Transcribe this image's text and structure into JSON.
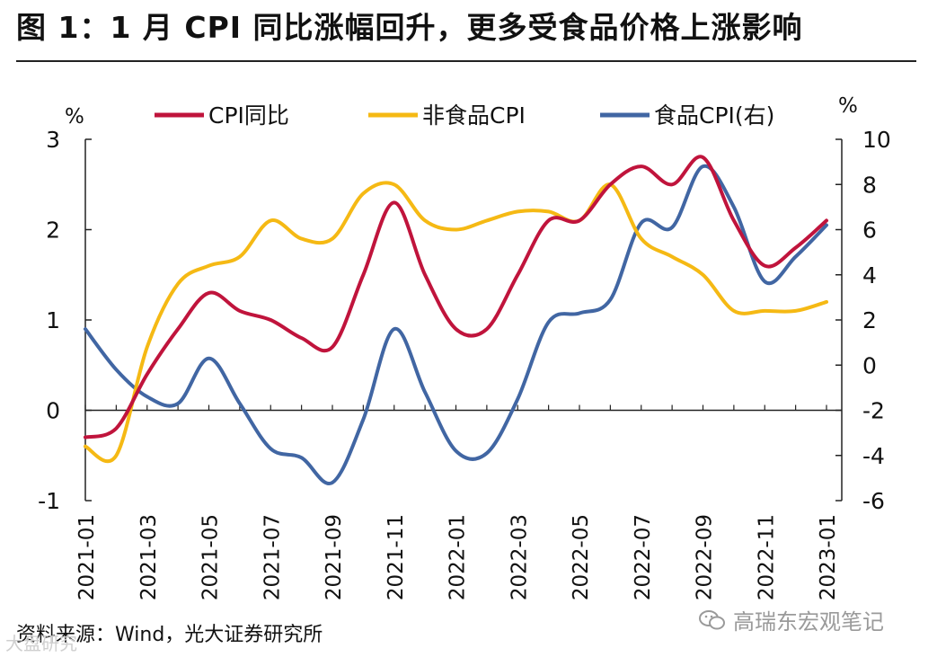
{
  "title": "图 1：1 月 CPI 同比涨幅回升，更多受食品价格上涨影响",
  "source": "资料来源：Wind，光大证券研究所",
  "watermark": "高瑞东宏观笔记",
  "watermark_left": "大盘研究",
  "chart_data": {
    "type": "line",
    "categories": [
      "2021-01",
      "2021-02",
      "2021-03",
      "2021-04",
      "2021-05",
      "2021-06",
      "2021-07",
      "2021-08",
      "2021-09",
      "2021-10",
      "2021-11",
      "2021-12",
      "2022-01",
      "2022-02",
      "2022-03",
      "2022-04",
      "2022-05",
      "2022-06",
      "2022-07",
      "2022-08",
      "2022-09",
      "2022-10",
      "2022-11",
      "2022-12",
      "2023-01"
    ],
    "xtick_labels": [
      "2021-01",
      "2021-03",
      "2021-05",
      "2021-07",
      "2021-09",
      "2021-11",
      "2022-01",
      "2022-03",
      "2022-05",
      "2022-07",
      "2022-09",
      "2022-11",
      "2023-01"
    ],
    "left_axis": {
      "unit": "%",
      "ylim": [
        -1,
        3
      ],
      "ticks": [
        "3",
        "2",
        "1",
        "0",
        "-1"
      ]
    },
    "right_axis": {
      "unit": "%",
      "ylim": [
        -6,
        10
      ],
      "ticks": [
        "10",
        "8",
        "6",
        "4",
        "2",
        "0",
        "-2",
        "-4",
        "-6"
      ]
    },
    "series": [
      {
        "name": "CPI同比",
        "axis": "left",
        "color": "#c0143c",
        "values": [
          -0.3,
          -0.2,
          0.4,
          0.9,
          1.3,
          1.1,
          1.0,
          0.8,
          0.7,
          1.5,
          2.3,
          1.5,
          0.9,
          0.9,
          1.5,
          2.1,
          2.1,
          2.5,
          2.7,
          2.5,
          2.8,
          2.1,
          1.6,
          1.8,
          2.1
        ]
      },
      {
        "name": "非食品CPI",
        "axis": "left",
        "color": "#f5b914",
        "values": [
          -0.4,
          -0.5,
          0.7,
          1.4,
          1.6,
          1.7,
          2.1,
          1.9,
          1.9,
          2.4,
          2.5,
          2.1,
          2.0,
          2.1,
          2.2,
          2.2,
          2.1,
          2.5,
          1.9,
          1.7,
          1.5,
          1.1,
          1.1,
          1.1,
          1.2
        ]
      },
      {
        "name": "食品CPI(右)",
        "axis": "right",
        "color": "#4166a3",
        "values": [
          1.6,
          -0.2,
          -1.4,
          -1.7,
          0.3,
          -1.7,
          -3.7,
          -4.1,
          -5.2,
          -2.4,
          1.6,
          -1.2,
          -3.8,
          -3.9,
          -1.5,
          1.9,
          2.3,
          2.9,
          6.3,
          6.1,
          8.8,
          7.0,
          3.7,
          4.8,
          6.2
        ]
      }
    ],
    "legend_position": "top",
    "grid": false
  }
}
